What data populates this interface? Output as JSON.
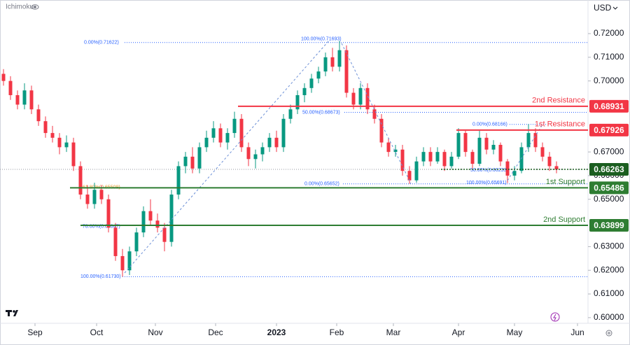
{
  "chart_data": {
    "type": "candlestick",
    "indicator_label": "Ichimoku",
    "currency": "USD",
    "up_color": "#089981",
    "down_color": "#f23645",
    "xlim": [
      -0.5,
      83.5
    ],
    "ylim": [
      0.5976,
      0.7342
    ],
    "xticks": [
      {
        "value": 4.5,
        "label": "Sep"
      },
      {
        "value": 13.3,
        "label": "Oct"
      },
      {
        "value": 21.7,
        "label": "Nov"
      },
      {
        "value": 30.3,
        "label": "Dec"
      },
      {
        "value": 39,
        "label": "2023"
      },
      {
        "value": 47.6,
        "label": "Feb"
      },
      {
        "value": 55.7,
        "label": "Mar"
      },
      {
        "value": 65,
        "label": "Apr"
      },
      {
        "value": 73,
        "label": "May"
      },
      {
        "value": 82,
        "label": "Jun"
      }
    ],
    "yticks": [
      {
        "value": 0.72,
        "label": "0.72000"
      },
      {
        "value": 0.71,
        "label": "0.71000"
      },
      {
        "value": 0.7,
        "label": "0.70000"
      },
      {
        "value": 0.67,
        "label": "0.67000"
      },
      {
        "value": 0.66,
        "label": "0.66000"
      },
      {
        "value": 0.65,
        "label": "0.65000"
      },
      {
        "value": 0.63,
        "label": "0.63000"
      },
      {
        "value": 0.62,
        "label": "0.62000"
      },
      {
        "value": 0.61,
        "label": "0.61000"
      },
      {
        "value": 0.6,
        "label": "0.60000"
      }
    ],
    "open": [
      0.703,
      0.7,
      0.694,
      0.69,
      0.696,
      0.688,
      0.683,
      0.678,
      0.676,
      0.672,
      0.674,
      0.664,
      0.652,
      0.648,
      0.654,
      0.65,
      0.638,
      0.626,
      0.62,
      0.628,
      0.636,
      0.645,
      0.641,
      0.638,
      0.632,
      0.652,
      0.664,
      0.668,
      0.663,
      0.672,
      0.676,
      0.68,
      0.674,
      0.678,
      0.684,
      0.672,
      0.667,
      0.669,
      0.672,
      0.676,
      0.672,
      0.684,
      0.688,
      0.694,
      0.697,
      0.701,
      0.704,
      0.71,
      0.706,
      0.713,
      0.695,
      0.69,
      0.697,
      0.688,
      0.684,
      0.674,
      0.67,
      0.671,
      0.662,
      0.658,
      0.666,
      0.67,
      0.666,
      0.67,
      0.664,
      0.668,
      0.678,
      0.67,
      0.665,
      0.676,
      0.671,
      0.673,
      0.666,
      0.66,
      0.662,
      0.672,
      0.678,
      0.672,
      0.668,
      0.664
    ],
    "high": [
      0.705,
      0.702,
      0.696,
      0.699,
      0.698,
      0.69,
      0.685,
      0.681,
      0.678,
      0.677,
      0.676,
      0.666,
      0.656,
      0.657,
      0.656,
      0.652,
      0.64,
      0.629,
      0.63,
      0.638,
      0.647,
      0.65,
      0.644,
      0.64,
      0.654,
      0.666,
      0.67,
      0.672,
      0.674,
      0.679,
      0.683,
      0.682,
      0.68,
      0.687,
      0.686,
      0.674,
      0.671,
      0.674,
      0.678,
      0.679,
      0.686,
      0.69,
      0.696,
      0.699,
      0.703,
      0.706,
      0.712,
      0.714,
      0.7169,
      0.715,
      0.697,
      0.699,
      0.699,
      0.69,
      0.686,
      0.676,
      0.673,
      0.673,
      0.664,
      0.668,
      0.672,
      0.672,
      0.672,
      0.671,
      0.67,
      0.68,
      0.679,
      0.671,
      0.679,
      0.678,
      0.675,
      0.674,
      0.667,
      0.664,
      0.674,
      0.6817,
      0.68,
      0.674,
      0.67,
      0.666
    ],
    "low": [
      0.698,
      0.692,
      0.688,
      0.688,
      0.686,
      0.681,
      0.676,
      0.674,
      0.669,
      0.67,
      0.662,
      0.65,
      0.646,
      0.646,
      0.648,
      0.636,
      0.624,
      0.6173,
      0.618,
      0.626,
      0.634,
      0.639,
      0.636,
      0.628,
      0.63,
      0.65,
      0.661,
      0.661,
      0.661,
      0.67,
      0.674,
      0.672,
      0.671,
      0.676,
      0.67,
      0.664,
      0.663,
      0.666,
      0.67,
      0.67,
      0.67,
      0.682,
      0.686,
      0.691,
      0.695,
      0.699,
      0.702,
      0.704,
      0.704,
      0.693,
      0.688,
      0.688,
      0.686,
      0.682,
      0.672,
      0.668,
      0.668,
      0.66,
      0.6565,
      0.657,
      0.664,
      0.664,
      0.665,
      0.662,
      0.663,
      0.667,
      0.668,
      0.663,
      0.664,
      0.669,
      0.669,
      0.664,
      0.6569,
      0.658,
      0.661,
      0.67,
      0.67,
      0.666,
      0.662,
      0.661
    ],
    "close": [
      0.7,
      0.694,
      0.69,
      0.696,
      0.688,
      0.683,
      0.678,
      0.676,
      0.672,
      0.674,
      0.664,
      0.652,
      0.648,
      0.654,
      0.65,
      0.638,
      0.626,
      0.62,
      0.628,
      0.636,
      0.645,
      0.641,
      0.638,
      0.632,
      0.652,
      0.664,
      0.668,
      0.663,
      0.672,
      0.676,
      0.68,
      0.674,
      0.678,
      0.684,
      0.672,
      0.667,
      0.669,
      0.672,
      0.676,
      0.672,
      0.684,
      0.688,
      0.694,
      0.697,
      0.701,
      0.704,
      0.71,
      0.706,
      0.713,
      0.695,
      0.69,
      0.697,
      0.688,
      0.684,
      0.674,
      0.67,
      0.671,
      0.662,
      0.658,
      0.666,
      0.67,
      0.666,
      0.67,
      0.664,
      0.668,
      0.678,
      0.67,
      0.665,
      0.676,
      0.671,
      0.673,
      0.666,
      0.66,
      0.662,
      0.672,
      0.678,
      0.672,
      0.668,
      0.664,
      0.6626
    ],
    "levels": [
      {
        "name": "2nd Resistance",
        "value": 0.68931,
        "color": "#f23645"
      },
      {
        "name": "1st Resistance",
        "value": 0.67926,
        "color": "#f23645"
      },
      {
        "value": 0.66263,
        "color": "#1b5e20"
      },
      {
        "name": "1st Support",
        "value": 0.65486,
        "color": "#2e7d32"
      },
      {
        "name": "2nd Support",
        "value": 0.63899,
        "color": "#2e7d32"
      }
    ],
    "fib_levels": [
      {
        "label": "0.00%(0.71622)",
        "value": 0.71622,
        "color": "#2962ff"
      },
      {
        "label": "100.00%(0.71693)",
        "value": 0.71693,
        "color": "#2962ff"
      },
      {
        "label": "50.00%(0.68673)",
        "value": 0.68673,
        "color": "#2962ff"
      },
      {
        "label": "0.00%(0.68166)",
        "value": 0.68166,
        "color": "#2962ff"
      },
      {
        "label": "50.00%(0.66233)",
        "value": 0.66233,
        "color": "#2962ff"
      },
      {
        "label": "100.00%(0.65691)",
        "value": 0.65691,
        "color": "#2962ff"
      },
      {
        "label": "0.00%(0.65652)",
        "value": 0.65652,
        "color": "#2962ff"
      },
      {
        "label": "61.80%(0.65509)",
        "value": 0.65509,
        "color": "#e89a2c"
      },
      {
        "label": "78.60%(0.63847)",
        "value": 0.63847,
        "color": "#2962ff"
      },
      {
        "label": "100.00%(0.61730)",
        "value": 0.6173,
        "color": "#2962ff"
      }
    ]
  }
}
